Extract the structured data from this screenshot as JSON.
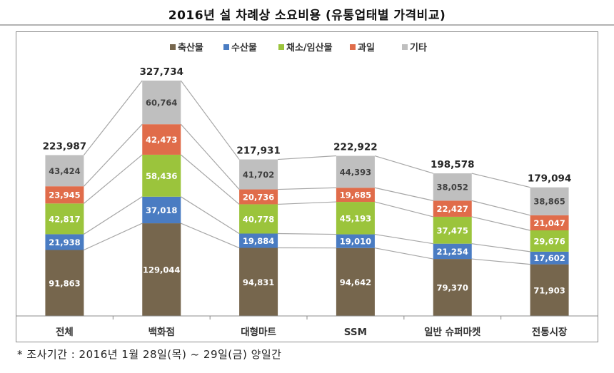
{
  "title": "2016년 설 차례상 소요비용 (유통업태별 가격비교)",
  "footnote": "* 조사기간 : 2016년 1월 28일(목) ~ 29일(금) 양일간",
  "chart_data": {
    "type": "bar",
    "stacked": true,
    "title": "2016년 설 차례상 소요비용 (유통업태별 가격비교)",
    "xlabel": "",
    "ylabel": "",
    "ylim": [
      0,
      327734
    ],
    "grid": false,
    "legend_position": "top-center",
    "categories": [
      "전체",
      "백화점",
      "대형마트",
      "SSM",
      "일반 슈퍼마켓",
      "전통시장"
    ],
    "series": [
      {
        "name": "축산물",
        "color": "#76664d",
        "label_color": "#ffffff",
        "values": [
          91863,
          129044,
          94831,
          94642,
          79370,
          71903
        ],
        "labels": [
          "91,863",
          "129,044",
          "94,831",
          "94,642",
          "79,370",
          "71,903"
        ]
      },
      {
        "name": "수산물",
        "color": "#4a7cc2",
        "label_color": "#ffffff",
        "values": [
          21938,
          37018,
          19884,
          19010,
          21254,
          17602
        ],
        "labels": [
          "21,938",
          "37,018",
          "19,884",
          "19,010",
          "21,254",
          "17,602"
        ]
      },
      {
        "name": "채소/임산물",
        "color": "#9bc43c",
        "label_color": "#ffffff",
        "values": [
          42817,
          58436,
          40778,
          45193,
          37475,
          29676
        ],
        "labels": [
          "42,817",
          "58,436",
          "40,778",
          "45,193",
          "37,475",
          "29,676"
        ]
      },
      {
        "name": "과일",
        "color": "#e06c4a",
        "label_color": "#ffffff",
        "values": [
          23945,
          42473,
          20736,
          19685,
          22427,
          21047
        ],
        "labels": [
          "23,945",
          "42,473",
          "20,736",
          "19,685",
          "22,427",
          "21,047"
        ]
      },
      {
        "name": "기타",
        "color": "#bfbfbf",
        "label_color": "#404040",
        "values": [
          43424,
          60764,
          41702,
          44393,
          38052,
          38865
        ],
        "labels": [
          "43,424",
          "60,764",
          "41,702",
          "44,393",
          "38,052",
          "38,865"
        ]
      }
    ],
    "totals": [
      223987,
      327734,
      217931,
      222922,
      198578,
      179094
    ],
    "total_labels": [
      "223,987",
      "327,734",
      "217,931",
      "222,922",
      "198,578",
      "179,094"
    ]
  }
}
